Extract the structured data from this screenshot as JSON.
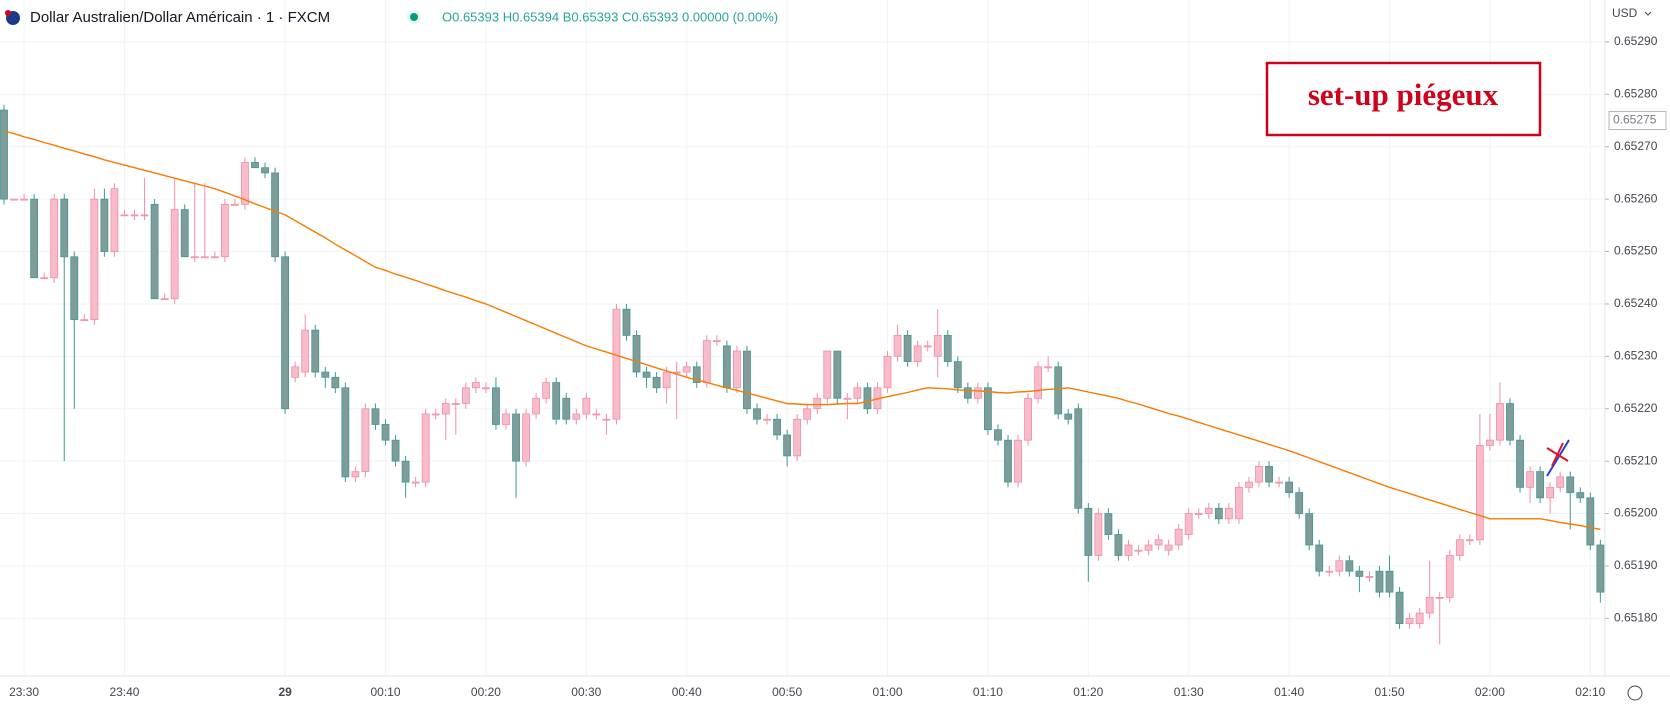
{
  "chart_data": {
    "type": "candlestick",
    "title": "Dollar Australien/Dollar Américain · 1 · FXCM",
    "ohlc_legend": "O0.65393 H0.65394 B0.65393 C0.65393 0.00000 (0.00%)",
    "currency": "USD",
    "annotation": "set-up piégeux",
    "colors": {
      "up": "#f8bbc9",
      "up_edge": "#ef8fa6",
      "down": "#7f9c9b",
      "down_edge": "#3d9a8f"
    },
    "grid": true,
    "ylim": [
      0.65169,
      0.65298
    ],
    "yticks": [
      {
        "value": 0.6518,
        "label": "0.65180"
      },
      {
        "value": 0.6519,
        "label": "0.65190"
      },
      {
        "value": 0.652,
        "label": "0.65200"
      },
      {
        "value": 0.6521,
        "label": "0.65210"
      },
      {
        "value": 0.6522,
        "label": "0.65220"
      },
      {
        "value": 0.6523,
        "label": "0.65230"
      },
      {
        "value": 0.6524,
        "label": "0.65240"
      },
      {
        "value": 0.6525,
        "label": "0.65250"
      },
      {
        "value": 0.6526,
        "label": "0.65260"
      },
      {
        "value": 0.6527,
        "label": "0.65270"
      },
      {
        "value": 0.6528,
        "label": "0.65280"
      },
      {
        "value": 0.6529,
        "label": "0.65290"
      }
    ],
    "price_tag": {
      "value": 0.65275,
      "label": "0.65275"
    },
    "categories": [
      null,
      null,
      "23:30",
      null,
      null,
      null,
      null,
      null,
      null,
      null,
      null,
      null,
      "23:40",
      null,
      null,
      null,
      null,
      null,
      null,
      null,
      null,
      null,
      null,
      null,
      null,
      null,
      null,
      null,
      "29",
      null,
      null,
      null,
      null,
      null,
      null,
      null,
      null,
      null,
      "00:10",
      null,
      null,
      null,
      null,
      null,
      null,
      null,
      null,
      null,
      "00:20",
      null,
      null,
      null,
      null,
      null,
      null,
      null,
      null,
      null,
      "00:30",
      null,
      null,
      null,
      null,
      null,
      null,
      null,
      null,
      null,
      "00:40",
      null,
      null,
      null,
      null,
      null,
      null,
      null,
      null,
      null,
      "00:50",
      null,
      null,
      null,
      null,
      null,
      null,
      null,
      null,
      null,
      "01:00",
      null,
      null,
      null,
      null,
      null,
      null,
      null,
      null,
      null,
      "01:10",
      null,
      null,
      null,
      null,
      null,
      null,
      null,
      null,
      null,
      "01:20",
      null,
      null,
      null,
      null,
      null,
      null,
      null,
      null,
      null,
      "01:30",
      null,
      null,
      null,
      null,
      null,
      null,
      null,
      null,
      null,
      "01:40",
      null,
      null,
      null,
      null,
      null,
      null,
      null,
      null,
      null,
      "01:50",
      null,
      null,
      null,
      null,
      null,
      null,
      null,
      null,
      null,
      "02:00",
      null,
      null,
      null,
      null,
      null,
      null,
      null,
      null,
      null,
      "02:10",
      null
    ],
    "candles": [
      [
        0.65277,
        0.65278,
        0.65259,
        0.6526
      ],
      [
        0.6526,
        0.6526,
        0.6526,
        0.6526
      ],
      [
        0.6526,
        0.65261,
        0.6526,
        0.6526
      ],
      [
        0.6526,
        0.65261,
        0.65245,
        0.65245
      ],
      [
        0.65245,
        0.65246,
        0.65245,
        0.65245
      ],
      [
        0.65245,
        0.65261,
        0.65244,
        0.6526
      ],
      [
        0.6526,
        0.65261,
        0.6521,
        0.65249
      ],
      [
        0.65249,
        0.6525,
        0.6522,
        0.65237
      ],
      [
        0.65237,
        0.65238,
        0.65237,
        0.65237
      ],
      [
        0.65237,
        0.65262,
        0.65236,
        0.6526
      ],
      [
        0.6526,
        0.65262,
        0.65249,
        0.6525
      ],
      [
        0.6525,
        0.65263,
        0.65249,
        0.65262
      ],
      [
        0.65257,
        0.65258,
        0.65257,
        0.65257
      ],
      [
        0.65257,
        0.65258,
        0.65256,
        0.65257
      ],
      [
        0.65257,
        0.65264,
        0.65256,
        0.65257
      ],
      [
        0.65259,
        0.6526,
        0.65241,
        0.65241
      ],
      [
        0.65241,
        0.65242,
        0.65241,
        0.65241
      ],
      [
        0.65241,
        0.65264,
        0.6524,
        0.65258
      ],
      [
        0.65258,
        0.65259,
        0.65249,
        0.65249
      ],
      [
        0.65249,
        0.65263,
        0.65248,
        0.65249
      ],
      [
        0.65249,
        0.65263,
        0.65249,
        0.65249
      ],
      [
        0.65249,
        0.6525,
        0.65249,
        0.65249
      ],
      [
        0.65249,
        0.6526,
        0.65248,
        0.65259
      ],
      [
        0.65259,
        0.6526,
        0.65259,
        0.65259
      ],
      [
        0.65259,
        0.65268,
        0.65258,
        0.65267
      ],
      [
        0.65267,
        0.65268,
        0.65266,
        0.65266
      ],
      [
        0.65266,
        0.65267,
        0.65264,
        0.65265
      ],
      [
        0.65265,
        0.65266,
        0.65248,
        0.65249
      ],
      [
        0.65249,
        0.6525,
        0.65219,
        0.6522
      ],
      [
        0.65226,
        0.65229,
        0.65225,
        0.65228
      ],
      [
        0.65227,
        0.65238,
        0.65226,
        0.65235
      ],
      [
        0.65235,
        0.65236,
        0.65226,
        0.65227
      ],
      [
        0.65227,
        0.65228,
        0.65224,
        0.65226
      ],
      [
        0.65226,
        0.65227,
        0.65223,
        0.65224
      ],
      [
        0.65224,
        0.65225,
        0.65206,
        0.65207
      ],
      [
        0.65207,
        0.65209,
        0.65206,
        0.65208
      ],
      [
        0.65208,
        0.65221,
        0.65207,
        0.6522
      ],
      [
        0.6522,
        0.65221,
        0.65216,
        0.65217
      ],
      [
        0.65217,
        0.65218,
        0.65213,
        0.65214
      ],
      [
        0.65214,
        0.65215,
        0.65209,
        0.6521
      ],
      [
        0.6521,
        0.65211,
        0.65203,
        0.65206
      ],
      [
        0.65206,
        0.65207,
        0.65205,
        0.65206
      ],
      [
        0.65206,
        0.6522,
        0.65205,
        0.65219
      ],
      [
        0.65219,
        0.6522,
        0.65218,
        0.65219
      ],
      [
        0.65219,
        0.65222,
        0.65214,
        0.65221
      ],
      [
        0.65221,
        0.65222,
        0.65215,
        0.65221
      ],
      [
        0.65221,
        0.65225,
        0.6522,
        0.65224
      ],
      [
        0.65224,
        0.65226,
        0.65223,
        0.65225
      ],
      [
        0.65224,
        0.65225,
        0.65223,
        0.65224
      ],
      [
        0.65224,
        0.65226,
        0.65216,
        0.65217
      ],
      [
        0.65217,
        0.6522,
        0.65216,
        0.65219
      ],
      [
        0.65219,
        0.6522,
        0.65203,
        0.6521
      ],
      [
        0.6521,
        0.6522,
        0.65209,
        0.65219
      ],
      [
        0.65219,
        0.65223,
        0.65218,
        0.65222
      ],
      [
        0.65222,
        0.65226,
        0.65221,
        0.65225
      ],
      [
        0.65225,
        0.65226,
        0.65217,
        0.65218
      ],
      [
        0.65222,
        0.65223,
        0.65217,
        0.65218
      ],
      [
        0.65218,
        0.6522,
        0.65217,
        0.65219
      ],
      [
        0.65219,
        0.65223,
        0.65218,
        0.65222
      ],
      [
        0.65219,
        0.6522,
        0.65218,
        0.65219
      ],
      [
        0.65218,
        0.65219,
        0.65215,
        0.65218
      ],
      [
        0.65218,
        0.6524,
        0.65217,
        0.65239
      ],
      [
        0.65239,
        0.6524,
        0.65233,
        0.65234
      ],
      [
        0.65234,
        0.65235,
        0.65226,
        0.65227
      ],
      [
        0.65227,
        0.65228,
        0.65224,
        0.65226
      ],
      [
        0.65226,
        0.65227,
        0.65223,
        0.65224
      ],
      [
        0.65224,
        0.65228,
        0.65221,
        0.65227
      ],
      [
        0.65227,
        0.65229,
        0.65218,
        0.65227
      ],
      [
        0.65227,
        0.65229,
        0.65226,
        0.65228
      ],
      [
        0.65228,
        0.65229,
        0.65224,
        0.65225
      ],
      [
        0.65225,
        0.65234,
        0.65224,
        0.65233
      ],
      [
        0.65233,
        0.65234,
        0.65232,
        0.65233
      ],
      [
        0.65232,
        0.65233,
        0.65223,
        0.65224
      ],
      [
        0.65224,
        0.65232,
        0.65223,
        0.65231
      ],
      [
        0.65231,
        0.65232,
        0.65219,
        0.6522
      ],
      [
        0.6522,
        0.65221,
        0.65217,
        0.65218
      ],
      [
        0.65218,
        0.65219,
        0.65217,
        0.65218
      ],
      [
        0.65218,
        0.65219,
        0.65214,
        0.65215
      ],
      [
        0.65215,
        0.65216,
        0.65209,
        0.65211
      ],
      [
        0.65211,
        0.65219,
        0.6521,
        0.65218
      ],
      [
        0.65218,
        0.65221,
        0.65217,
        0.6522
      ],
      [
        0.6522,
        0.65223,
        0.65219,
        0.65222
      ],
      [
        0.65222,
        0.65231,
        0.65221,
        0.65231
      ],
      [
        0.65231,
        0.65231,
        0.65221,
        0.65222
      ],
      [
        0.65222,
        0.65223,
        0.65218,
        0.65222
      ],
      [
        0.65222,
        0.65225,
        0.65221,
        0.65224
      ],
      [
        0.65224,
        0.65225,
        0.65219,
        0.6522
      ],
      [
        0.6522,
        0.65225,
        0.65219,
        0.65224
      ],
      [
        0.65224,
        0.65231,
        0.65223,
        0.6523
      ],
      [
        0.6523,
        0.65236,
        0.65229,
        0.65234
      ],
      [
        0.65234,
        0.65235,
        0.65228,
        0.65229
      ],
      [
        0.65229,
        0.65233,
        0.65228,
        0.65232
      ],
      [
        0.65232,
        0.65233,
        0.65231,
        0.65232
      ],
      [
        0.6523,
        0.65239,
        0.65226,
        0.65234
      ],
      [
        0.65234,
        0.65235,
        0.65228,
        0.65229
      ],
      [
        0.65229,
        0.6523,
        0.65223,
        0.65224
      ],
      [
        0.65224,
        0.65225,
        0.65221,
        0.65222
      ],
      [
        0.65222,
        0.65225,
        0.65221,
        0.65224
      ],
      [
        0.65224,
        0.65225,
        0.65215,
        0.65216
      ],
      [
        0.65216,
        0.65217,
        0.65213,
        0.65214
      ],
      [
        0.65214,
        0.65215,
        0.65205,
        0.65206
      ],
      [
        0.65206,
        0.65215,
        0.65205,
        0.65214
      ],
      [
        0.65214,
        0.65223,
        0.65213,
        0.65222
      ],
      [
        0.65222,
        0.65229,
        0.65221,
        0.65228
      ],
      [
        0.65228,
        0.6523,
        0.65227,
        0.65228
      ],
      [
        0.65228,
        0.65229,
        0.65218,
        0.65219
      ],
      [
        0.65219,
        0.6522,
        0.65217,
        0.65218
      ],
      [
        0.6522,
        0.65221,
        0.652,
        0.65201
      ],
      [
        0.65201,
        0.65202,
        0.65187,
        0.65192
      ],
      [
        0.65192,
        0.65201,
        0.65191,
        0.652
      ],
      [
        0.652,
        0.65201,
        0.65195,
        0.65196
      ],
      [
        0.65196,
        0.65197,
        0.65191,
        0.65192
      ],
      [
        0.65192,
        0.65195,
        0.65191,
        0.65194
      ],
      [
        0.65193,
        0.65194,
        0.65192,
        0.65193
      ],
      [
        0.65193,
        0.65195,
        0.65192,
        0.65194
      ],
      [
        0.65194,
        0.65196,
        0.65193,
        0.65195
      ],
      [
        0.65193,
        0.65195,
        0.65192,
        0.65194
      ],
      [
        0.65194,
        0.65198,
        0.65193,
        0.65197
      ],
      [
        0.65196,
        0.65201,
        0.65195,
        0.652
      ],
      [
        0.652,
        0.65201,
        0.65199,
        0.652
      ],
      [
        0.652,
        0.65202,
        0.65199,
        0.65201
      ],
      [
        0.65201,
        0.65202,
        0.65198,
        0.65199
      ],
      [
        0.65199,
        0.65202,
        0.65198,
        0.65201
      ],
      [
        0.65199,
        0.65206,
        0.65198,
        0.65205
      ],
      [
        0.65205,
        0.65207,
        0.65204,
        0.65206
      ],
      [
        0.65206,
        0.6521,
        0.65205,
        0.65209
      ],
      [
        0.65209,
        0.6521,
        0.65205,
        0.65206
      ],
      [
        0.65206,
        0.65207,
        0.65205,
        0.65206
      ],
      [
        0.65206,
        0.65207,
        0.65203,
        0.65204
      ],
      [
        0.65204,
        0.65205,
        0.65199,
        0.652
      ],
      [
        0.652,
        0.65201,
        0.65193,
        0.65194
      ],
      [
        0.65194,
        0.65195,
        0.65188,
        0.65189
      ],
      [
        0.65189,
        0.6519,
        0.65188,
        0.65189
      ],
      [
        0.65189,
        0.65192,
        0.65188,
        0.65191
      ],
      [
        0.65191,
        0.65192,
        0.65188,
        0.65189
      ],
      [
        0.65189,
        0.6519,
        0.65185,
        0.65188
      ],
      [
        0.65188,
        0.65189,
        0.65187,
        0.65188
      ],
      [
        0.65189,
        0.6519,
        0.65184,
        0.65185
      ],
      [
        0.65189,
        0.65192,
        0.65184,
        0.65185
      ],
      [
        0.65185,
        0.65186,
        0.65178,
        0.65179
      ],
      [
        0.65179,
        0.65181,
        0.65178,
        0.6518
      ],
      [
        0.65179,
        0.65182,
        0.65178,
        0.65181
      ],
      [
        0.65181,
        0.65191,
        0.6518,
        0.65184
      ],
      [
        0.65184,
        0.65185,
        0.65175,
        0.65184
      ],
      [
        0.65184,
        0.65193,
        0.65183,
        0.65192
      ],
      [
        0.65192,
        0.65196,
        0.65191,
        0.65195
      ],
      [
        0.65195,
        0.65196,
        0.65194,
        0.65195
      ],
      [
        0.65195,
        0.65219,
        0.65194,
        0.65213
      ],
      [
        0.65213,
        0.65219,
        0.65212,
        0.65214
      ],
      [
        0.65214,
        0.65225,
        0.65213,
        0.65221
      ],
      [
        0.65221,
        0.65222,
        0.65213,
        0.65214
      ],
      [
        0.65214,
        0.65215,
        0.65204,
        0.65205
      ],
      [
        0.65205,
        0.65209,
        0.65202,
        0.65208
      ],
      [
        0.65208,
        0.65209,
        0.65202,
        0.65203
      ],
      [
        0.65203,
        0.65206,
        0.652,
        0.65205
      ],
      [
        0.65205,
        0.65208,
        0.65204,
        0.65207
      ],
      [
        0.65207,
        0.65208,
        0.65197,
        0.65204
      ],
      [
        0.65204,
        0.65205,
        0.65202,
        0.65203
      ],
      [
        0.65203,
        0.65204,
        0.65193,
        0.65194
      ],
      [
        0.65194,
        0.65195,
        0.65183,
        0.65185
      ]
    ],
    "ma": {
      "color": "#f57c00",
      "values": [
        0.65273,
        0.652725,
        0.652719,
        0.652714,
        0.652708,
        0.652703,
        0.652697,
        0.652692,
        0.652686,
        0.652681,
        0.652675,
        0.65267,
        0.652665,
        0.65266,
        0.652655,
        0.65265,
        0.652645,
        0.65264,
        0.652635,
        0.65263,
        0.652625,
        0.65262,
        0.652613,
        0.652606,
        0.652599,
        0.652591,
        0.652584,
        0.652577,
        0.65257,
        0.652559,
        0.652548,
        0.652537,
        0.652526,
        0.652514,
        0.652503,
        0.652492,
        0.652481,
        0.65247,
        0.652464,
        0.652457,
        0.652451,
        0.652445,
        0.652438,
        0.652432,
        0.652425,
        0.652419,
        0.652413,
        0.652406,
        0.6524,
        0.652392,
        0.652384,
        0.652376,
        0.652368,
        0.65236,
        0.652352,
        0.652344,
        0.652336,
        0.652328,
        0.65232,
        0.652314,
        0.652308,
        0.652302,
        0.652296,
        0.65229,
        0.652284,
        0.652278,
        0.652272,
        0.652266,
        0.65226,
        0.652255,
        0.65225,
        0.652245,
        0.65224,
        0.652235,
        0.65223,
        0.652225,
        0.65222,
        0.652215,
        0.65221,
        0.652209,
        0.652208,
        0.652208,
        0.652208,
        0.652209,
        0.65221,
        0.65221,
        0.652214,
        0.652219,
        0.652223,
        0.652227,
        0.652231,
        0.652236,
        0.65224,
        0.652239,
        0.652238,
        0.652236,
        0.652235,
        0.652234,
        0.652233,
        0.652231,
        0.65223,
        0.652232,
        0.652233,
        0.652235,
        0.652237,
        0.652238,
        0.65224,
        0.652236,
        0.652232,
        0.652228,
        0.652224,
        0.65222,
        0.652214,
        0.652209,
        0.652203,
        0.652197,
        0.652191,
        0.652186,
        0.65218,
        0.652174,
        0.652168,
        0.652162,
        0.652156,
        0.65215,
        0.652144,
        0.652138,
        0.652132,
        0.652126,
        0.65212,
        0.652113,
        0.652106,
        0.652099,
        0.652092,
        0.652085,
        0.652078,
        0.652071,
        0.652064,
        0.652057,
        0.65205,
        0.652044,
        0.652038,
        0.652032,
        0.652026,
        0.65202,
        0.652014,
        0.652008,
        0.652002,
        0.651996,
        0.65199,
        0.65199,
        0.65199,
        0.65199,
        0.65199,
        0.65199,
        0.651987,
        0.651983,
        0.65198,
        0.651977,
        0.651973,
        0.65197
      ]
    }
  }
}
